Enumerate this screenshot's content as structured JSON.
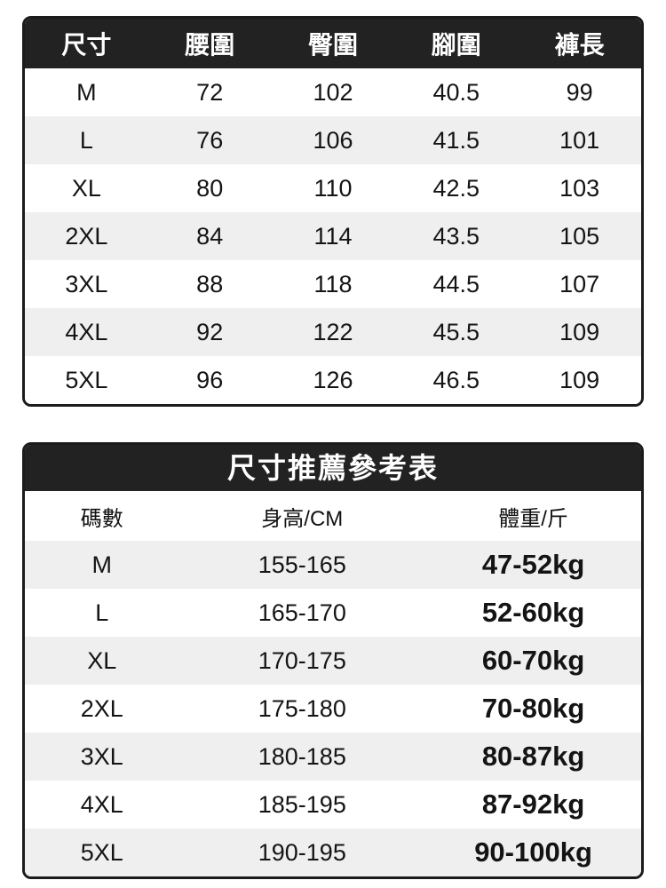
{
  "colors": {
    "page_bg": "#ffffff",
    "table_border": "#1b1b1b",
    "header_bg": "#222222",
    "header_text": "#ffffff",
    "stripe_bg": "#efefef",
    "row_bg": "#ffffff",
    "cell_text": "#141414"
  },
  "chart_data": [
    {
      "type": "table",
      "name": "pants-measurements",
      "title": "",
      "columns": [
        "尺寸",
        "腰圍",
        "臀圍",
        "腳圍",
        "褲長"
      ],
      "rows": [
        [
          "M",
          "72",
          "102",
          "40.5",
          "99"
        ],
        [
          "L",
          "76",
          "106",
          "41.5",
          "101"
        ],
        [
          "XL",
          "80",
          "110",
          "42.5",
          "103"
        ],
        [
          "2XL",
          "84",
          "114",
          "43.5",
          "105"
        ],
        [
          "3XL",
          "88",
          "118",
          "44.5",
          "107"
        ],
        [
          "4XL",
          "92",
          "122",
          "45.5",
          "109"
        ],
        [
          "5XL",
          "96",
          "126",
          "46.5",
          "109"
        ]
      ]
    },
    {
      "type": "table",
      "name": "size-recommendation",
      "title": "尺寸推薦參考表",
      "columns": [
        "碼數",
        "身高/CM",
        "體重/斤"
      ],
      "rows": [
        [
          "M",
          "155-165",
          "47-52kg"
        ],
        [
          "L",
          "165-170",
          "52-60kg"
        ],
        [
          "XL",
          "170-175",
          "60-70kg"
        ],
        [
          "2XL",
          "175-180",
          "70-80kg"
        ],
        [
          "3XL",
          "180-185",
          "80-87kg"
        ],
        [
          "4XL",
          "185-195",
          "87-92kg"
        ],
        [
          "5XL",
          "190-195",
          "90-100kg"
        ]
      ]
    }
  ]
}
